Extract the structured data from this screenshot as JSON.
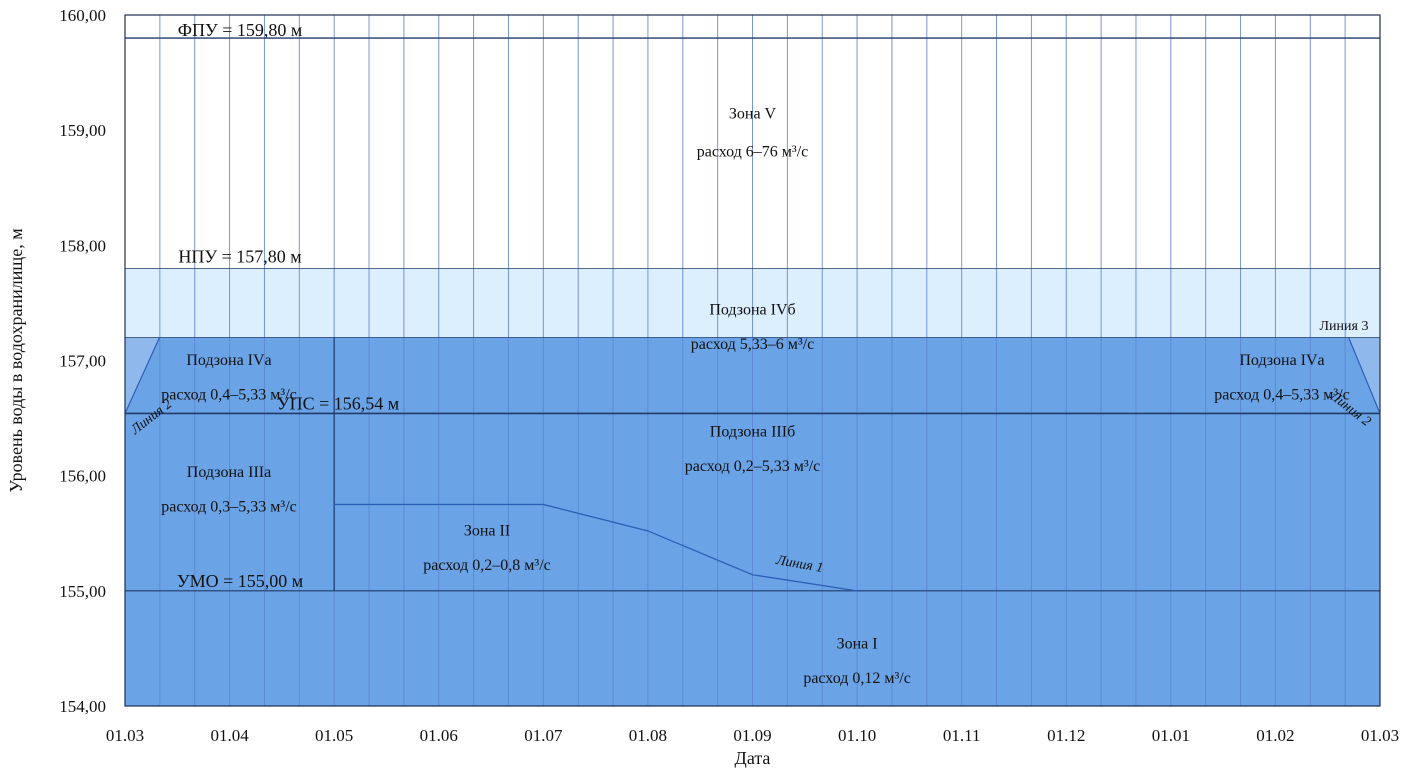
{
  "chart_data": {
    "type": "area",
    "xlabel": "Дата",
    "ylabel": "Уровень воды в водохранилище, м",
    "x_tick_labels": [
      "01.03",
      "01.04",
      "01.05",
      "01.06",
      "01.07",
      "01.08",
      "01.09",
      "01.10",
      "01.11",
      "01.12",
      "01.01",
      "01.02",
      "01.03"
    ],
    "y_tick_labels": [
      "154,00",
      "155,00",
      "156,00",
      "157,00",
      "158,00",
      "159,00",
      "160,00"
    ],
    "ylim": [
      154,
      160
    ],
    "x_month_index_range": [
      0,
      12
    ],
    "grid": "vertical lines",
    "levels": [
      {
        "id": "fpu",
        "label": "ФПУ = 159,80 м",
        "value": 159.8
      },
      {
        "id": "npu",
        "label": "НПУ = 157,80 м",
        "value": 157.8
      },
      {
        "id": "ups",
        "label": "УПС = 156,54 м",
        "value": 156.54
      },
      {
        "id": "umo",
        "label": "УМО = 155,00 м",
        "value": 155.0
      }
    ],
    "boundary_lines": [
      {
        "id": "line1",
        "label": "Линия 1",
        "points": [
          [
            2,
            155.75
          ],
          [
            4,
            155.75
          ],
          [
            5,
            155.52
          ],
          [
            6,
            155.14
          ],
          [
            7,
            155.0
          ]
        ]
      },
      {
        "id": "line2_left",
        "label": "Линия 2",
        "points": [
          [
            0,
            156.54
          ],
          [
            0.33,
            157.2
          ]
        ]
      },
      {
        "id": "line2_right",
        "label": "Линия 2",
        "points": [
          [
            11.7,
            157.2
          ],
          [
            12,
            156.54
          ]
        ]
      },
      {
        "id": "line3",
        "label": "Линия 3",
        "points": [
          [
            2,
            157.2
          ],
          [
            12,
            157.2
          ]
        ]
      }
    ],
    "zones": [
      {
        "name": "Зона V",
        "flow": "расход 6–76 м³/с"
      },
      {
        "name": "Подзона IVб",
        "flow": "расход 5,33–6 м³/с"
      },
      {
        "name": "Подзона IVа",
        "flow": "расход 0,4–5,33 м³/с"
      },
      {
        "name": "Подзона IVа",
        "flow": "расход 0,4–5,33 м³/с"
      },
      {
        "name": "Подзона IIIа",
        "flow": "расход 0,3–5,33 м³/с"
      },
      {
        "name": "Подзона IIIб",
        "flow": "расход 0,2–5,33 м³/с"
      },
      {
        "name": "Зона II",
        "flow": "расход 0,2–0,8 м³/с"
      },
      {
        "name": "Зона I",
        "flow": "расход 0,12 м³/с"
      }
    ],
    "colors": {
      "npu_band": "#dcefff",
      "zone_fill": "#6aa3e6",
      "zone_fill_dark": "#5b93da",
      "level_line": "#223b66",
      "grid_line": "#5f84d4"
    }
  }
}
